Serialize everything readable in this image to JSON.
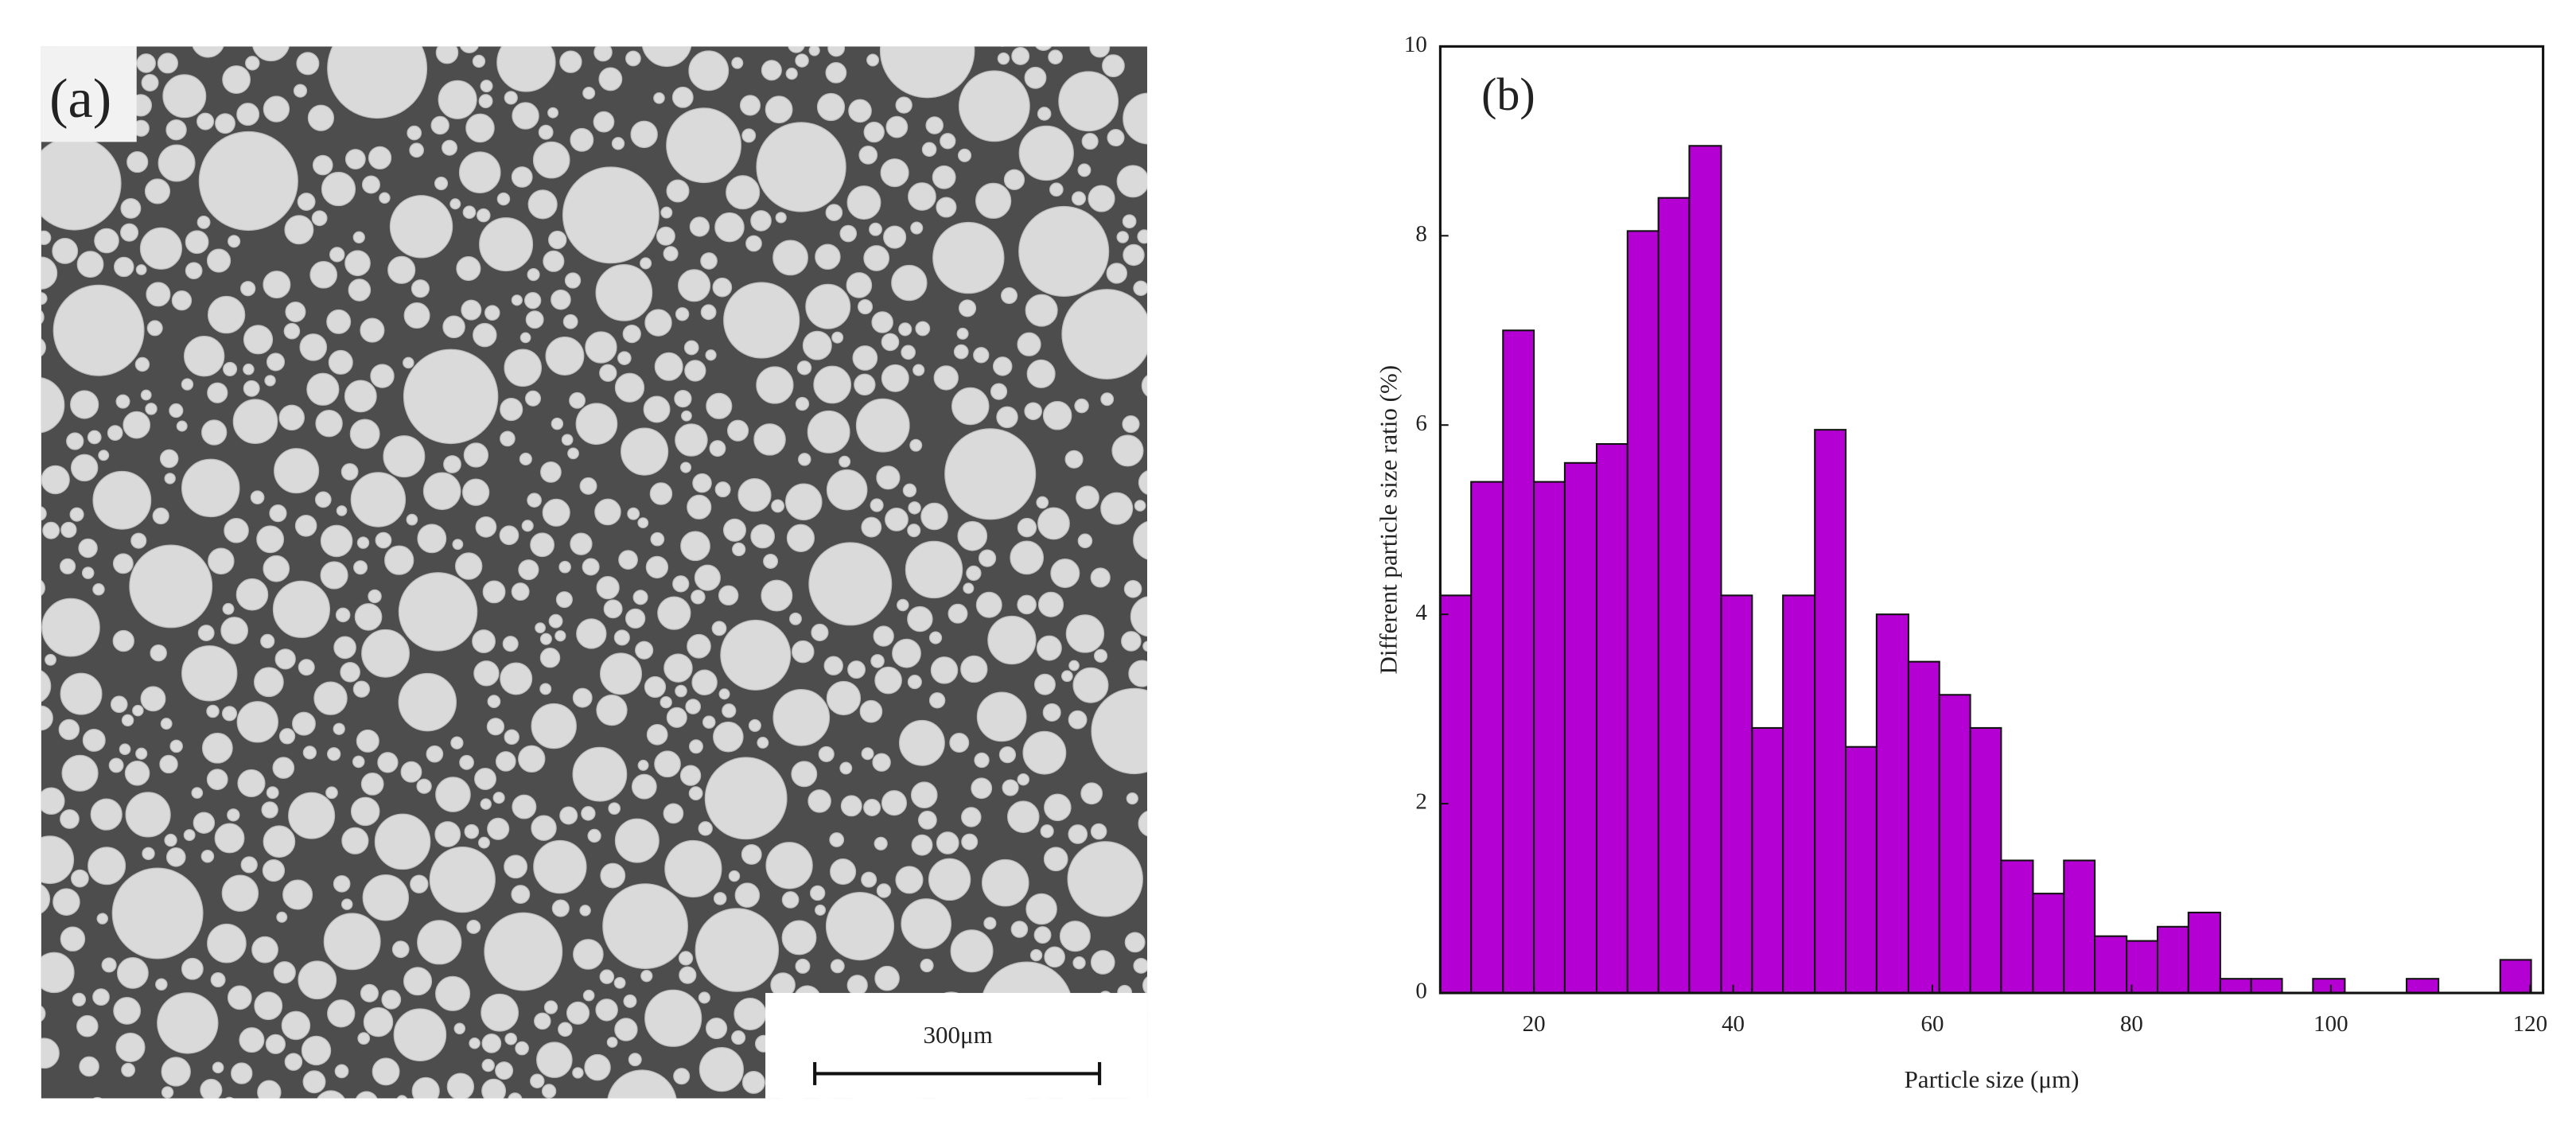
{
  "panel_a": {
    "label": "(a)",
    "scale_bar": "300μm"
  },
  "chart_data": {
    "type": "histogram",
    "annotation": "(b)",
    "x_label": "Particle size (μm)",
    "y_label": "Different particle size ratio (%)",
    "bins": [
      10.6,
      13.7,
      16.9,
      20.0,
      23.1,
      26.3,
      29.4,
      32.5,
      35.6,
      38.8,
      41.9,
      45.0,
      48.2,
      51.3,
      54.4,
      57.6,
      60.7,
      63.8,
      66.9,
      70.1,
      73.2,
      76.3,
      79.5,
      82.6,
      85.7,
      88.9,
      92.0,
      95.1,
      98.2,
      101.4,
      104.5,
      107.6,
      110.8,
      113.9,
      117.0,
      120.1
    ],
    "values": [
      4.2,
      5.4,
      7.0,
      5.4,
      5.6,
      5.8,
      8.05,
      8.4,
      8.95,
      4.2,
      2.8,
      4.2,
      5.95,
      2.6,
      4.0,
      3.5,
      3.15,
      2.8,
      1.4,
      1.05,
      1.4,
      0.6,
      0.55,
      0.7,
      0.85,
      0.15,
      0.15,
      0,
      0.15,
      0,
      0,
      0.15,
      0,
      0,
      0.35
    ],
    "color": "#b400d2",
    "xlim": [
      10.6,
      121.3
    ],
    "ylim": [
      0,
      10
    ],
    "xticks": [
      20,
      40,
      60,
      80,
      100,
      120
    ],
    "yticks": [
      0,
      2,
      4,
      6,
      8,
      10
    ]
  }
}
